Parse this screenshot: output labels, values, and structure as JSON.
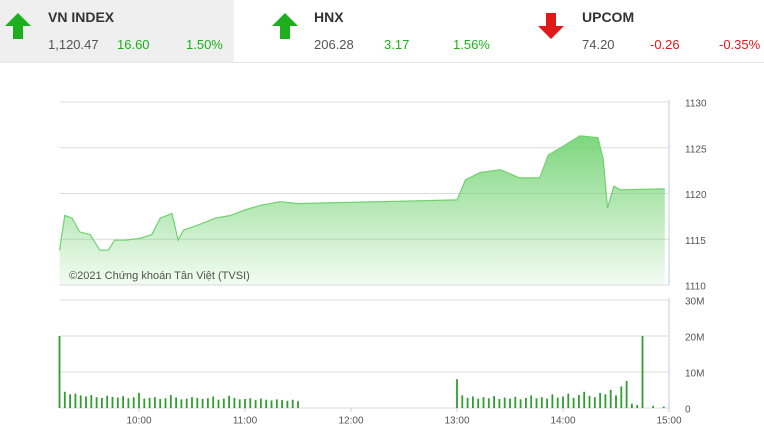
{
  "indices": [
    {
      "name": "VN INDEX",
      "value": "1,120.47",
      "change": "16.60",
      "change_pct": "1.50%"
    },
    {
      "name": "HNX",
      "value": "206.28",
      "change": "3.17",
      "change_pct": "1.56%"
    },
    {
      "name": "UPCOM",
      "value": "74.20",
      "change": "-0.26",
      "change_pct": "-0.35%"
    }
  ],
  "chart_data": [
    {
      "type": "area",
      "annotation": "©2021 Chứng khoán Tân Việt (TVSI)",
      "color": "#6fd26f",
      "x": [
        9.25,
        9.3,
        9.37,
        9.44,
        9.54,
        9.63,
        9.71,
        9.77,
        9.87,
        10.01,
        10.12,
        10.2,
        10.31,
        10.37,
        10.42,
        10.57,
        10.72,
        10.86,
        11,
        11.14,
        11.33,
        11.5,
        13,
        13.08,
        13.22,
        13.41,
        13.59,
        13.78,
        13.86,
        14.02,
        14.16,
        14.33,
        14.38,
        14.42,
        14.48,
        14.54,
        14.96
      ],
      "values": [
        1113.8,
        1117.6,
        1117.3,
        1115.8,
        1115.5,
        1113.8,
        1113.8,
        1114.9,
        1114.9,
        1115.1,
        1115.5,
        1117.3,
        1117.8,
        1114.9,
        1116.0,
        1116.6,
        1117.3,
        1117.6,
        1118.2,
        1118.7,
        1119.1,
        1118.9,
        1119.3,
        1121.5,
        1122.3,
        1122.6,
        1121.7,
        1121.7,
        1124.2,
        1125.3,
        1126.3,
        1126.1,
        1123.7,
        1118.4,
        1120.8,
        1120.4,
        1120.5
      ],
      "xlim": [
        9.25,
        15
      ],
      "ylim": [
        1110,
        1130
      ],
      "yticks": [
        1110,
        1115,
        1120,
        1125,
        1130
      ],
      "grid": true
    },
    {
      "type": "bar",
      "color": "#2e9e2e",
      "x": [
        9.25,
        9.3,
        9.35,
        9.4,
        9.45,
        9.5,
        9.55,
        9.6,
        9.65,
        9.7,
        9.75,
        9.8,
        9.85,
        9.9,
        9.95,
        10,
        10.05,
        10.1,
        10.15,
        10.2,
        10.25,
        10.3,
        10.35,
        10.4,
        10.45,
        10.5,
        10.55,
        10.6,
        10.65,
        10.7,
        10.75,
        10.8,
        10.85,
        10.9,
        10.95,
        11,
        11.05,
        11.1,
        11.15,
        11.2,
        11.25,
        11.3,
        11.35,
        11.4,
        11.45,
        11.5,
        13,
        13.05,
        13.1,
        13.15,
        13.2,
        13.25,
        13.3,
        13.35,
        13.4,
        13.45,
        13.5,
        13.55,
        13.6,
        13.65,
        13.7,
        13.75,
        13.8,
        13.85,
        13.9,
        13.95,
        14,
        14.05,
        14.1,
        14.15,
        14.2,
        14.25,
        14.3,
        14.35,
        14.4,
        14.45,
        14.5,
        14.55,
        14.6,
        14.65,
        14.7,
        14.75,
        14.85,
        14.95
      ],
      "values": [
        20000000,
        4500000,
        3800000,
        4000000,
        3500000,
        3200000,
        3600000,
        3000000,
        2800000,
        3400000,
        3100000,
        2900000,
        3300000,
        2700000,
        3000000,
        4200000,
        2600000,
        2800000,
        3000000,
        2500000,
        2700000,
        3600000,
        2900000,
        2400000,
        2600000,
        3000000,
        2800000,
        2500000,
        2700000,
        3200000,
        2300000,
        2600000,
        3400000,
        2800000,
        2400000,
        2500000,
        2700000,
        2200000,
        2600000,
        2300000,
        2100000,
        2400000,
        2200000,
        2000000,
        2300000,
        1900000,
        8000000,
        3500000,
        2800000,
        3200000,
        2600000,
        3000000,
        2700000,
        3300000,
        2500000,
        2900000,
        2600000,
        3100000,
        2400000,
        2800000,
        3500000,
        2700000,
        3000000,
        2600000,
        3800000,
        2900000,
        3200000,
        4000000,
        2800000,
        3600000,
        4500000,
        3400000,
        3000000,
        4200000,
        3800000,
        5000000,
        3500000,
        6000000,
        7500000,
        1200000,
        800000,
        20000000,
        600000,
        400000
      ],
      "xlim": [
        9.25,
        15
      ],
      "ylim": [
        0,
        30000000
      ],
      "yticks": [
        0,
        {
          "value": 10000000,
          "label": "10M"
        },
        {
          "value": 20000000,
          "label": "20M"
        },
        {
          "value": 30000000,
          "label": "30M"
        }
      ],
      "xticks": [
        {
          "value": 10,
          "label": "10:00"
        },
        {
          "value": 11,
          "label": "11:00"
        },
        {
          "value": 12,
          "label": "12:00"
        },
        {
          "value": 13,
          "label": "13:00"
        },
        {
          "value": 14,
          "label": "14:00"
        },
        {
          "value": 15,
          "label": "15:00"
        }
      ],
      "grid": true
    }
  ]
}
